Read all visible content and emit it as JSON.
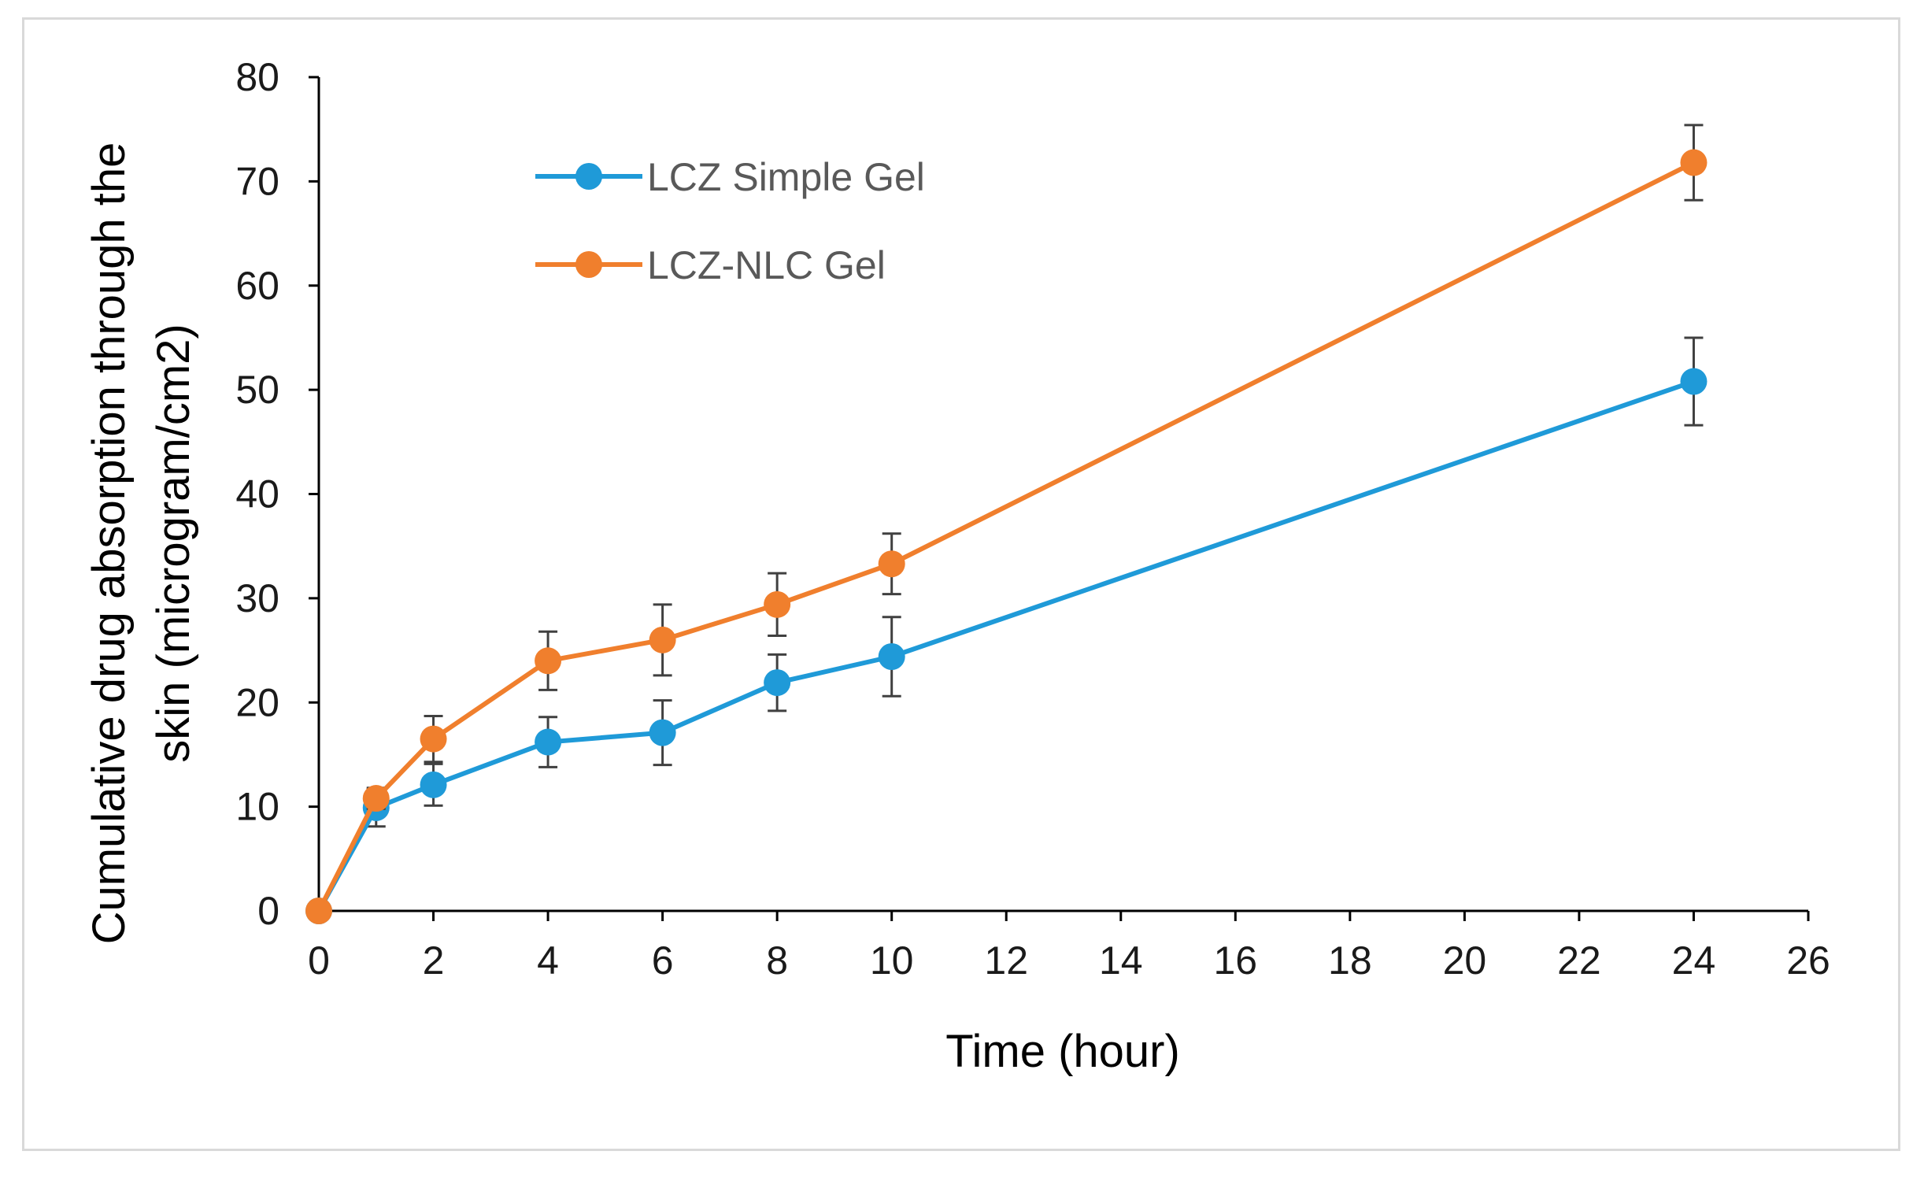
{
  "chart_data": {
    "type": "line",
    "title": "",
    "xlabel": "Time (hour)",
    "ylabel_lines": [
      "Cumulative drug absorption through the",
      "skin (microgram/cm2)"
    ],
    "xlim": [
      0,
      26
    ],
    "ylim": [
      0,
      80
    ],
    "x_ticks": [
      0,
      2,
      4,
      6,
      8,
      10,
      12,
      14,
      16,
      18,
      20,
      22,
      24,
      26
    ],
    "y_ticks": [
      0,
      10,
      20,
      30,
      40,
      50,
      60,
      70,
      80
    ],
    "grid": false,
    "legend_position": "top-left",
    "series": [
      {
        "name": "LCZ Simple Gel",
        "color": "#1f9ad8",
        "x": [
          0,
          1,
          2,
          4,
          6,
          8,
          10,
          24
        ],
        "y": [
          0,
          9.9,
          12.1,
          16.2,
          17.1,
          21.9,
          24.4,
          50.8
        ],
        "err": [
          0,
          1.8,
          2.0,
          2.4,
          3.1,
          2.7,
          3.8,
          4.2
        ]
      },
      {
        "name": "LCZ-NLC Gel",
        "color": "#f07f2d",
        "x": [
          0,
          1,
          2,
          4,
          6,
          8,
          10,
          24
        ],
        "y": [
          0,
          10.8,
          16.5,
          24.0,
          26.0,
          29.4,
          33.3,
          71.8
        ],
        "err": [
          0,
          1.0,
          2.2,
          2.8,
          3.4,
          3.0,
          2.9,
          3.6
        ]
      }
    ]
  }
}
